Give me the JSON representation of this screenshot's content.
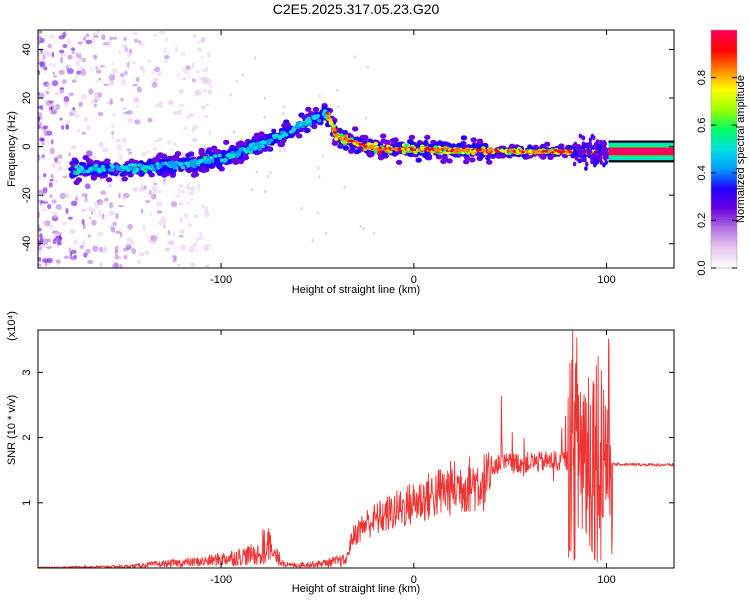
{
  "figure_title": "C2E5.2025.317.05.23.G20",
  "chart_data": [
    {
      "type": "heatmap",
      "xlabel": "Height of straight line (km)",
      "ylabel": "Frequency (Hz)",
      "xlim": [
        -195,
        135
      ],
      "ylim": [
        -50,
        48
      ],
      "x_ticks": [
        -100,
        0,
        100
      ],
      "y_ticks": [
        -40,
        -20,
        0,
        20,
        40
      ],
      "colorbar": {
        "label": "Normalized spectral amplitude",
        "range": [
          0,
          1
        ],
        "ticks": [
          0.0,
          0.2,
          0.4,
          0.6,
          0.8
        ],
        "colors": [
          "#ffffff",
          "#e8c8f0",
          "#b070e0",
          "#6a00e0",
          "#2000ff",
          "#00a0ff",
          "#00e0e0",
          "#00ff60",
          "#a0ff00",
          "#ffff00",
          "#ff8000",
          "#ff0000",
          "#ff0060"
        ]
      },
      "ridge": [
        {
          "x": -175,
          "y": -10
        },
        {
          "x": -150,
          "y": -9
        },
        {
          "x": -125,
          "y": -8
        },
        {
          "x": -100,
          "y": -5
        },
        {
          "x": -80,
          "y": 1
        },
        {
          "x": -65,
          "y": 6
        },
        {
          "x": -50,
          "y": 12
        },
        {
          "x": -45,
          "y": 14
        },
        {
          "x": -40,
          "y": 4
        },
        {
          "x": -20,
          "y": -1
        },
        {
          "x": 0,
          "y": -1
        },
        {
          "x": 50,
          "y": -2
        },
        {
          "x": 100,
          "y": -2
        },
        {
          "x": 135,
          "y": -2
        }
      ]
    },
    {
      "type": "line",
      "xlabel": "Height of straight line (km)",
      "ylabel": "SNR (10 * v/v)",
      "y_multiplier": "(x10⁴)",
      "xlim": [
        -195,
        135
      ],
      "ylim": [
        0,
        3.65
      ],
      "x_ticks": [
        -100,
        0,
        100
      ],
      "y_ticks": [
        1,
        2,
        3
      ],
      "line_color": "#ee3333",
      "envelope": [
        {
          "x": -195,
          "y": 0.01
        },
        {
          "x": -150,
          "y": 0.03
        },
        {
          "x": -130,
          "y": 0.08
        },
        {
          "x": -110,
          "y": 0.12
        },
        {
          "x": -90,
          "y": 0.22
        },
        {
          "x": -75,
          "y": 0.3
        },
        {
          "x": -65,
          "y": 0.05
        },
        {
          "x": -50,
          "y": 0.08
        },
        {
          "x": -35,
          "y": 0.15
        },
        {
          "x": -32,
          "y": 0.55
        },
        {
          "x": -25,
          "y": 0.8
        },
        {
          "x": -15,
          "y": 0.95
        },
        {
          "x": -5,
          "y": 1.1
        },
        {
          "x": 5,
          "y": 1.25
        },
        {
          "x": 20,
          "y": 1.45
        },
        {
          "x": 35,
          "y": 1.55
        },
        {
          "x": 45,
          "y": 1.6
        },
        {
          "x": 60,
          "y": 1.62
        },
        {
          "x": 80,
          "y": 1.65
        },
        {
          "x": 90,
          "y": 1.6
        },
        {
          "x": 100,
          "y": 1.6
        },
        {
          "x": 104,
          "y": 1.59
        },
        {
          "x": 135,
          "y": 1.58
        }
      ]
    }
  ]
}
